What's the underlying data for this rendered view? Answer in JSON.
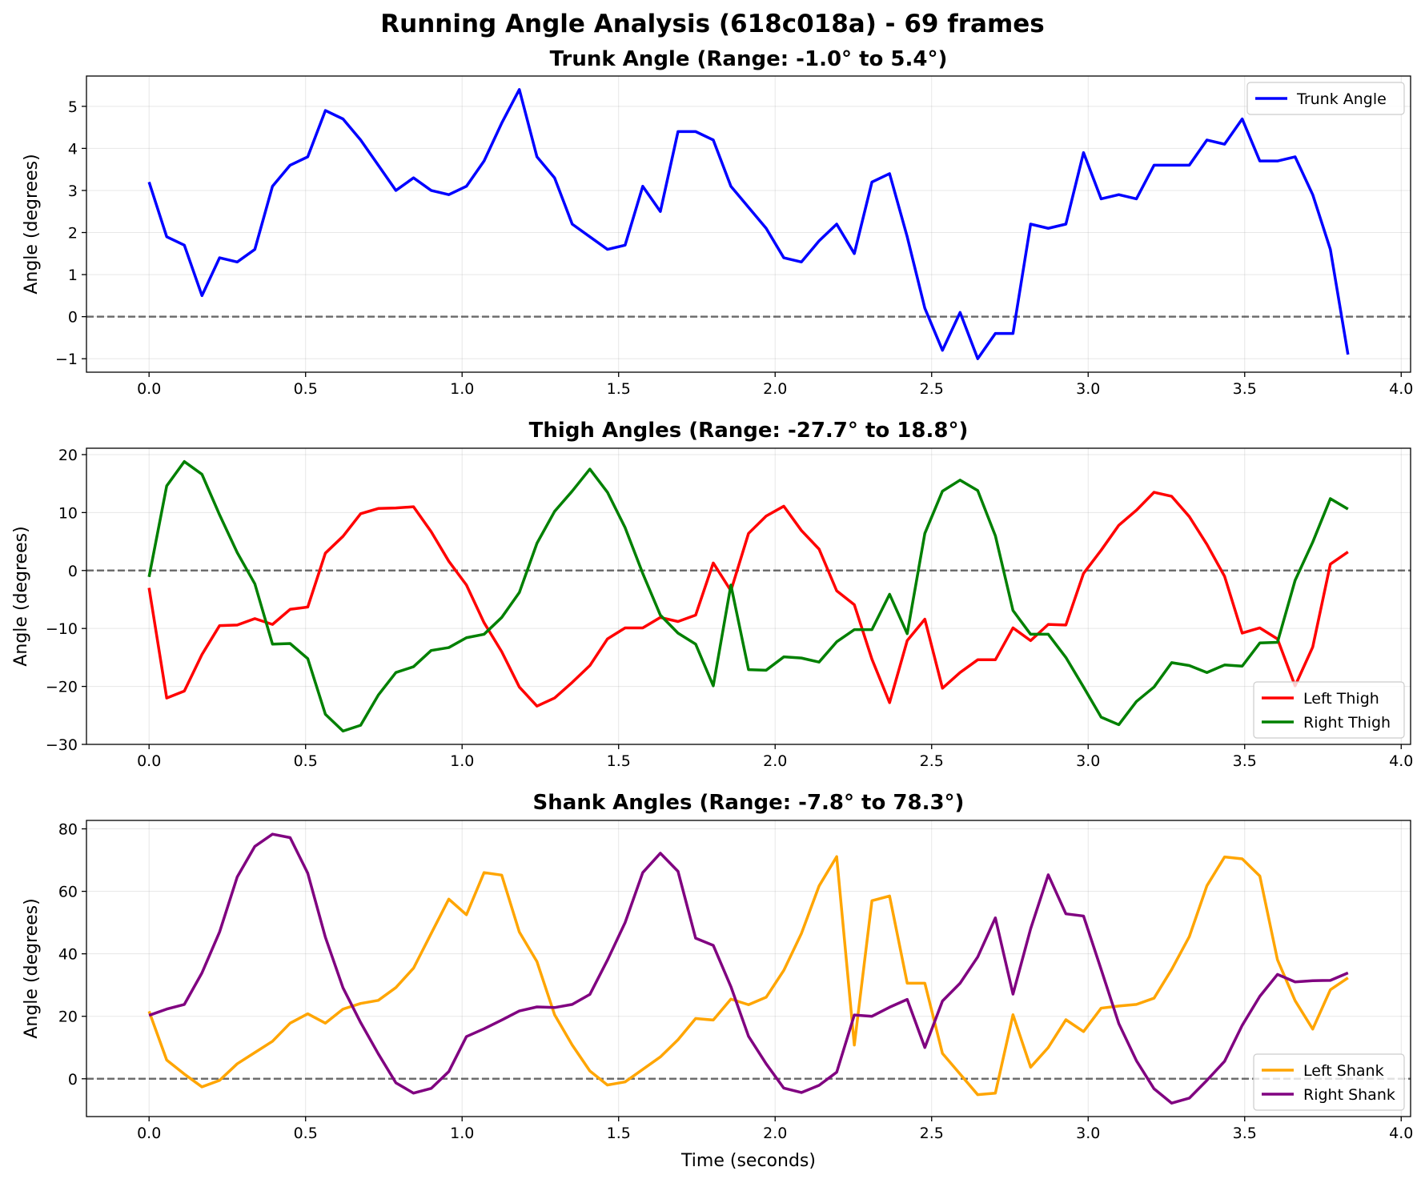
{
  "title": "Running Angle Analysis (618c018a) - 69 frames",
  "chart_data": [
    {
      "type": "line",
      "title": "Trunk Angle (Range: -1.0° to 5.4°)",
      "xlabel": "",
      "ylabel": "Angle (degrees)",
      "xlim": [
        -0.2,
        4.03
      ],
      "ylim": [
        -1.32,
        5.72
      ],
      "xticks": [
        0.0,
        0.5,
        1.0,
        1.5,
        2.0,
        2.5,
        3.0,
        3.5,
        4.0
      ],
      "xtick_labels": [
        "0.0",
        "0.5",
        "1.0",
        "1.5",
        "2.0",
        "2.5",
        "3.0",
        "3.5",
        "4.0"
      ],
      "yticks": [
        -1,
        0,
        1,
        2,
        3,
        4,
        5
      ],
      "ytick_labels": [
        "−1",
        "0",
        "1",
        "2",
        "3",
        "4",
        "5"
      ],
      "grid": true,
      "zero_line": true,
      "legend_position": "upper right",
      "series": [
        {
          "name": "Trunk Angle",
          "color": "#0000ff",
          "values": [
            3.2,
            1.9,
            1.7,
            0.5,
            1.4,
            1.3,
            1.6,
            3.1,
            3.6,
            3.8,
            4.9,
            4.7,
            4.2,
            3.6,
            3.0,
            3.3,
            3.0,
            2.9,
            3.1,
            3.7,
            4.6,
            5.4,
            3.8,
            3.3,
            2.2,
            1.9,
            1.6,
            1.7,
            3.1,
            2.5,
            4.4,
            4.4,
            4.2,
            3.1,
            2.6,
            2.1,
            1.4,
            1.3,
            1.8,
            2.2,
            1.5,
            3.2,
            3.4,
            1.9,
            0.2,
            -0.8,
            0.1,
            -1.0,
            -0.4,
            -0.4,
            2.2,
            2.1,
            2.2,
            3.9,
            2.8,
            2.9,
            2.8,
            3.6,
            3.6,
            3.6,
            4.2,
            4.1,
            4.7,
            3.7,
            3.7,
            3.8,
            2.9,
            1.6,
            -0.9
          ]
        }
      ]
    },
    {
      "type": "line",
      "title": "Thigh Angles (Range: -27.7° to 18.8°)",
      "xlabel": "",
      "ylabel": "Angle (degrees)",
      "xlim": [
        -0.2,
        4.03
      ],
      "ylim": [
        -30.0,
        21.1
      ],
      "xticks": [
        0.0,
        0.5,
        1.0,
        1.5,
        2.0,
        2.5,
        3.0,
        3.5,
        4.0
      ],
      "xtick_labels": [
        "0.0",
        "0.5",
        "1.0",
        "1.5",
        "2.0",
        "2.5",
        "3.0",
        "3.5",
        "4.0"
      ],
      "yticks": [
        -30,
        -20,
        -10,
        0,
        10,
        20
      ],
      "ytick_labels": [
        "−30",
        "−20",
        "−10",
        "0",
        "10",
        "20"
      ],
      "grid": true,
      "zero_line": true,
      "legend_position": "lower right",
      "series": [
        {
          "name": "Left Thigh",
          "color": "#ff0000",
          "values": [
            -3.0,
            -22.0,
            -20.8,
            -14.5,
            -9.5,
            -9.4,
            -8.3,
            -9.3,
            -6.7,
            -6.3,
            3.0,
            5.9,
            9.8,
            10.7,
            10.8,
            11.0,
            6.7,
            1.6,
            -2.5,
            -9.0,
            -14.0,
            -20.1,
            -23.4,
            -22.0,
            -19.3,
            -16.4,
            -11.8,
            -9.9,
            -9.9,
            -8.1,
            -8.8,
            -7.7,
            1.3,
            -3.5,
            6.4,
            9.4,
            11.1,
            6.9,
            3.7,
            -3.5,
            -5.9,
            -15.3,
            -22.8,
            -12.1,
            -8.4,
            -20.3,
            -17.6,
            -15.4,
            -15.4,
            -9.9,
            -12.1,
            -9.3,
            -9.4,
            -0.5,
            3.5,
            7.8,
            10.4,
            13.5,
            12.8,
            9.3,
            4.5,
            -1.0,
            -10.8,
            -9.9,
            -11.8,
            -19.9,
            -13.2,
            1.1,
            3.2
          ]
        },
        {
          "name": "Right Thigh",
          "color": "#008000",
          "values": [
            -1.1,
            14.6,
            18.8,
            16.6,
            9.6,
            3.1,
            -2.3,
            -12.7,
            -12.6,
            -15.2,
            -24.8,
            -27.7,
            -26.7,
            -21.5,
            -17.6,
            -16.6,
            -13.8,
            -13.3,
            -11.6,
            -11.0,
            -8.1,
            -3.8,
            4.7,
            10.2,
            13.7,
            17.5,
            13.5,
            7.4,
            -0.5,
            -7.7,
            -10.8,
            -12.7,
            -19.9,
            -2.5,
            -17.1,
            -17.2,
            -14.9,
            -15.1,
            -15.8,
            -12.3,
            -10.2,
            -10.2,
            -4.1,
            -10.9,
            6.4,
            13.7,
            15.6,
            13.8,
            6.0,
            -6.9,
            -11.0,
            -11.0,
            -15.0,
            -20.1,
            -25.3,
            -26.6,
            -22.6,
            -20.1,
            -15.9,
            -16.4,
            -17.6,
            -16.3,
            -16.5,
            -12.5,
            -12.4,
            -1.7,
            4.9,
            12.4,
            10.6
          ]
        }
      ]
    },
    {
      "type": "line",
      "title": "Shank Angles (Range: -7.8° to 78.3°)",
      "xlabel": "Time (seconds)",
      "ylabel": "Angle (degrees)",
      "xlim": [
        -0.2,
        4.03
      ],
      "ylim": [
        -12.1,
        82.7
      ],
      "xticks": [
        0.0,
        0.5,
        1.0,
        1.5,
        2.0,
        2.5,
        3.0,
        3.5,
        4.0
      ],
      "xtick_labels": [
        "0.0",
        "0.5",
        "1.0",
        "1.5",
        "2.0",
        "2.5",
        "3.0",
        "3.5",
        "4.0"
      ],
      "yticks": [
        0,
        20,
        40,
        60,
        80
      ],
      "ytick_labels": [
        "0",
        "20",
        "40",
        "60",
        "80"
      ],
      "grid": true,
      "zero_line": true,
      "legend_position": "lower right",
      "series": [
        {
          "name": "Left Shank",
          "color": "#ffa500",
          "values": [
            21.6,
            6.0,
            1.5,
            -2.6,
            -0.5,
            4.8,
            8.4,
            12.0,
            17.8,
            20.8,
            17.8,
            22.3,
            24.1,
            25.1,
            29.2,
            35.4,
            46.5,
            57.5,
            52.5,
            66.0,
            65.2,
            47.0,
            37.5,
            20.5,
            10.8,
            2.5,
            -2.0,
            -1.0,
            3.0,
            7.0,
            12.5,
            19.3,
            18.8,
            25.5,
            23.7,
            26.1,
            34.7,
            46.5,
            61.7,
            71.1,
            10.8,
            57.0,
            58.5,
            30.6,
            30.6,
            8.1,
            1.5,
            -5.1,
            -4.6,
            20.5,
            3.7,
            10.0,
            18.9,
            15.1,
            22.6,
            23.3,
            23.8,
            25.8,
            35.0,
            45.5,
            61.8,
            71.0,
            70.4,
            64.9,
            38.1,
            25.0,
            15.9,
            28.5,
            32.3
          ]
        },
        {
          "name": "Right Shank",
          "color": "#800080",
          "values": [
            20.3,
            22.3,
            23.8,
            33.9,
            47.0,
            64.6,
            74.4,
            78.3,
            77.2,
            65.8,
            45.3,
            29.1,
            18.0,
            8.0,
            -1.3,
            -4.6,
            -3.1,
            2.3,
            13.5,
            16.0,
            18.8,
            21.7,
            23.0,
            22.8,
            23.8,
            27.0,
            38.0,
            50.0,
            66.0,
            72.2,
            66.4,
            45.0,
            42.7,
            29.5,
            13.6,
            4.8,
            -3.0,
            -4.4,
            -2.1,
            2.1,
            20.4,
            20.0,
            22.9,
            25.4,
            10.0,
            24.9,
            30.6,
            39.0,
            51.5,
            27.1,
            48.0,
            65.3,
            52.8,
            52.1,
            35.0,
            17.7,
            5.8,
            -3.2,
            -7.8,
            -6.2,
            -0.5,
            5.6,
            17.1,
            26.4,
            33.4,
            31.0,
            31.4,
            31.5,
            33.9
          ]
        }
      ]
    }
  ]
}
